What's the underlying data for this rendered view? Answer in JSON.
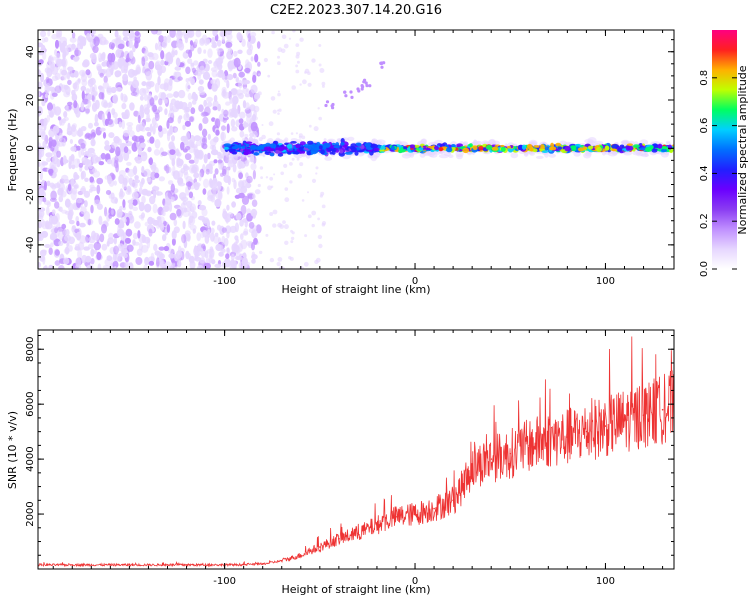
{
  "figure_title": "C2E2.2023.307.14.20.G16",
  "colors": {
    "snr_line": "#ee3333",
    "axis": "#000000",
    "colormap": [
      "#ffffff",
      "#e6d6ff",
      "#c090ff",
      "#8a3cf2",
      "#6a00ff",
      "#2020ff",
      "#0070ff",
      "#00d0ff",
      "#00ff60",
      "#c0ff00",
      "#ffb000",
      "#ff2020",
      "#ff0080"
    ]
  },
  "chart_data": [
    {
      "type": "heatmap",
      "xlabel": "Height of straight line (km)",
      "ylabel": "Frequency (Hz)",
      "xlim": [
        -198,
        136
      ],
      "ylim": [
        -50,
        49
      ],
      "xticks": [
        -100,
        0,
        100
      ],
      "yticks": [
        -40,
        -20,
        0,
        20,
        40
      ],
      "grid": false,
      "colorbar": {
        "label": "Normalized spectral amplitude",
        "range": [
          0,
          1
        ],
        "ticks": [
          "0.0",
          "0.2",
          "0.4",
          "0.6",
          "0.8"
        ],
        "tick_values": [
          0.0,
          0.2,
          0.4,
          0.6,
          0.8
        ]
      },
      "features": {
        "noise_region_x": [
          -198,
          -82
        ],
        "signal_band_center_hz": 0,
        "signal_band_x": [
          -100,
          136
        ],
        "faint_trace_points": [
          [
            -45,
            18
          ],
          [
            -35,
            22
          ],
          [
            -28,
            25
          ],
          [
            -25,
            27
          ],
          [
            -18,
            35
          ]
        ]
      }
    },
    {
      "type": "line",
      "xlabel": "Height of straight line (km)",
      "ylabel": "SNR (10 * v/v)",
      "xlim": [
        -198,
        136
      ],
      "ylim": [
        0,
        8700
      ],
      "xticks": [
        -100,
        0,
        100
      ],
      "yticks": [
        2000,
        4000,
        6000,
        8000
      ],
      "grid": false,
      "x": [
        -198,
        -180,
        -160,
        -140,
        -120,
        -100,
        -90,
        -80,
        -70,
        -60,
        -50,
        -40,
        -30,
        -20,
        -10,
        0,
        10,
        20,
        25,
        30,
        40,
        50,
        60,
        70,
        80,
        90,
        100,
        110,
        120,
        130,
        136
      ],
      "y": [
        150,
        150,
        150,
        150,
        150,
        150,
        160,
        180,
        300,
        500,
        800,
        1100,
        1300,
        1600,
        1900,
        2000,
        2200,
        2500,
        3000,
        3700,
        4000,
        4200,
        4500,
        4700,
        4800,
        5000,
        5200,
        5400,
        5600,
        5800,
        6000
      ]
    }
  ]
}
